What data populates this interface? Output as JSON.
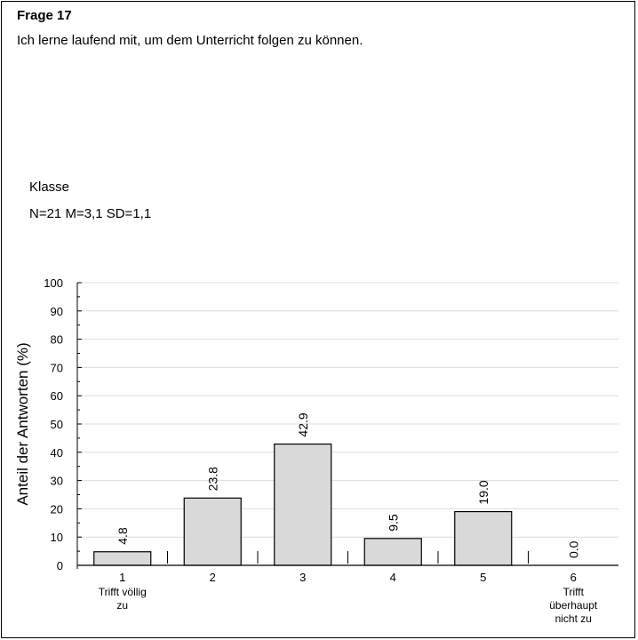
{
  "question": {
    "title": "Frage 17",
    "text": "Ich lerne laufend mit, um dem Unterricht folgen zu können."
  },
  "group_label": "Klasse",
  "stats": "N=21 M=3,1 SD=1,1",
  "chart_data": {
    "type": "bar",
    "categories": [
      "1",
      "2",
      "3",
      "4",
      "5",
      "6"
    ],
    "category_sublabels": [
      [
        "Trifft völlig",
        "zu"
      ],
      [],
      [],
      [],
      [],
      [
        "Trifft",
        "überhaupt",
        "nicht zu"
      ]
    ],
    "values": [
      4.8,
      23.8,
      42.9,
      9.5,
      19.0,
      0.0
    ],
    "value_labels": [
      "4.8",
      "23.8",
      "42.9",
      "9.5",
      "19.0",
      "0.0"
    ],
    "ylabel": "Anteil der Antworten (%)",
    "ylim": [
      0,
      100
    ],
    "yticks": [
      "0",
      "10",
      "20",
      "30",
      "40",
      "50",
      "60",
      "70",
      "80",
      "90",
      "100"
    ],
    "grid": true,
    "bar_color": "#d9d9d9"
  }
}
